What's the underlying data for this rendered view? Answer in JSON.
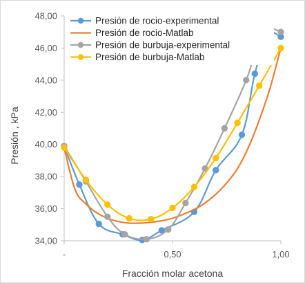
{
  "chart_data": {
    "type": "line",
    "xlabel": "Fracción molar acetona",
    "ylabel": "Presión , kPa",
    "xlim": [
      0,
      1
    ],
    "ylim": [
      34,
      48
    ],
    "x_ticks": [
      0,
      0.5,
      1
    ],
    "x_tick_labels": [
      "-",
      "0,50",
      "1,00"
    ],
    "y_ticks": [
      34,
      36,
      38,
      40,
      42,
      44,
      46,
      48
    ],
    "y_tick_labels": [
      "34,00",
      "36,00",
      "38,00",
      "40,00",
      "42,00",
      "44,00",
      "46,00",
      "48,00"
    ],
    "grid": "none",
    "legend_position": "top-right",
    "series": [
      {
        "name": "Presión  de rocio-experimental",
        "color": "#5B9BD5",
        "markers": true,
        "x": [
          0,
          0.07,
          0.16,
          0.27,
          0.36,
          0.45,
          0.6,
          0.7,
          0.82,
          0.88,
          0.94,
          1.0
        ],
        "y": [
          39.9,
          37.5,
          35.05,
          34.4,
          34.05,
          34.65,
          35.8,
          38.4,
          40.6,
          44.4,
          46.8,
          46.7
        ]
      },
      {
        "name": "Presión de rocio-Matlab",
        "color": "#ED7D31",
        "markers": false,
        "x": [
          0,
          0.05,
          0.1,
          0.15,
          0.2,
          0.25,
          0.3,
          0.35,
          0.4,
          0.45,
          0.5,
          0.55,
          0.6,
          0.65,
          0.7,
          0.75,
          0.8,
          0.85,
          0.9,
          0.95,
          1.0
        ],
        "y": [
          39.8,
          37.2,
          36.3,
          35.75,
          35.4,
          35.2,
          35.1,
          35.1,
          35.15,
          35.25,
          35.4,
          35.65,
          35.95,
          36.35,
          36.9,
          37.6,
          38.5,
          39.8,
          41.5,
          43.5,
          46.0
        ]
      },
      {
        "name": "Presión de burbuja-experimental",
        "color": "#A5A5A5",
        "markers": true,
        "x": [
          0,
          0.1,
          0.2,
          0.28,
          0.38,
          0.48,
          0.56,
          0.65,
          0.74,
          0.84,
          0.92,
          1.0
        ],
        "y": [
          39.9,
          37.7,
          35.5,
          34.4,
          34.1,
          34.7,
          36.35,
          38.5,
          41.0,
          44.0,
          47.0,
          47.0
        ]
      },
      {
        "name": "Presión de burbuja-Matlab",
        "color": "#FFC000",
        "markers": true,
        "x": [
          0,
          0.1,
          0.2,
          0.3,
          0.4,
          0.5,
          0.6,
          0.7,
          0.8,
          0.9,
          1.0
        ],
        "y": [
          39.8,
          37.8,
          36.25,
          35.4,
          35.35,
          36.05,
          37.35,
          39.15,
          41.35,
          43.65,
          46.0
        ]
      }
    ]
  }
}
